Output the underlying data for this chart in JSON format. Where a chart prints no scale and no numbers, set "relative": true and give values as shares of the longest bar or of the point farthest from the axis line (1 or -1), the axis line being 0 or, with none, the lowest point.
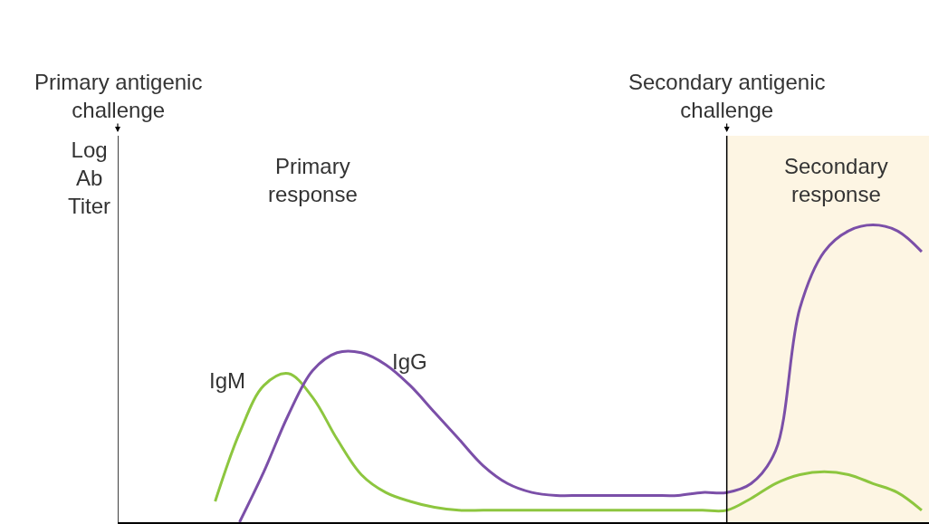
{
  "chart_data": {
    "type": "line",
    "relative": true,
    "ylabel": "Log Ab Titer",
    "categories": [
      null,
      null,
      null,
      null,
      null,
      null,
      null,
      null,
      null,
      null,
      null,
      null,
      null,
      null,
      null,
      null,
      null,
      null,
      null,
      null,
      null,
      null,
      null,
      null,
      null,
      null,
      null,
      null,
      null,
      null,
      null,
      null,
      null,
      null
    ],
    "series": [
      {
        "name": "IgM",
        "color": "#8dc63f",
        "values": [
          null,
          null,
          null,
          null,
          0.07,
          0.3,
          0.46,
          0.5,
          0.42,
          0.28,
          0.16,
          0.1,
          0.07,
          0.05,
          0.04,
          0.04,
          0.04,
          0.04,
          0.04,
          0.04,
          0.04,
          0.04,
          0.04,
          0.04,
          0.04,
          0.04,
          0.08,
          0.13,
          0.16,
          0.17,
          0.16,
          0.13,
          0.1,
          0.04
        ]
      },
      {
        "name": "IgG",
        "color": "#7b4fa8",
        "values": [
          null,
          null,
          null,
          null,
          null,
          0,
          0.17,
          0.36,
          0.51,
          0.57,
          0.57,
          0.53,
          0.46,
          0.37,
          0.28,
          0.19,
          0.13,
          0.1,
          0.09,
          0.09,
          0.09,
          0.09,
          0.09,
          0.09,
          0.1,
          0.1,
          0.13,
          0.24,
          0.72,
          0.91,
          0.98,
          1,
          0.98,
          0.91
        ]
      }
    ],
    "annotations": [
      "Primary response",
      "Primary antigenic challenge",
      "Secondary antigenic challenge",
      "Secondary response"
    ],
    "grid": false,
    "legend": false,
    "marker": "none",
    "line_style": "solid"
  }
}
